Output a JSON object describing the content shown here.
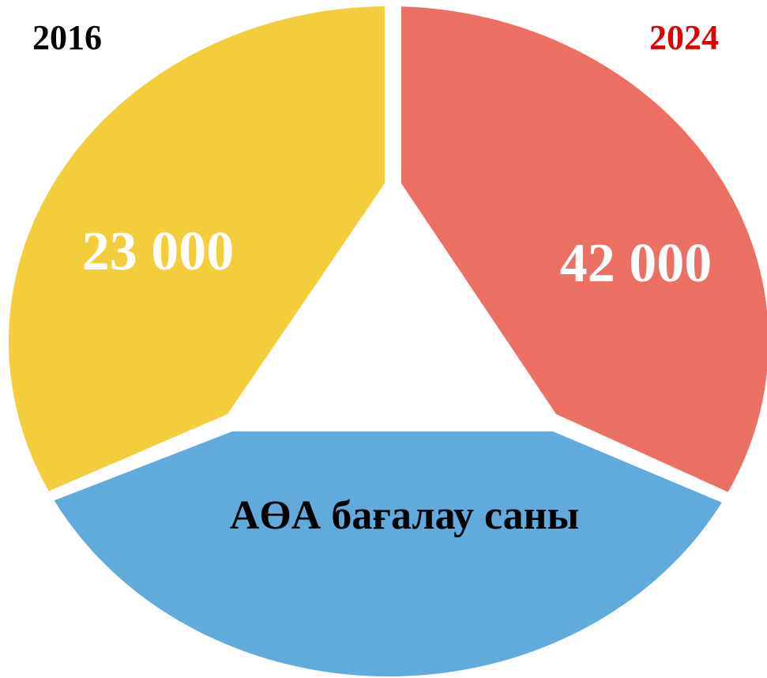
{
  "left": {
    "year": "2016",
    "value": "23 000"
  },
  "right": {
    "year": "2024",
    "value": "42 000"
  },
  "bottom": {
    "label": "АӨА бағалау саны"
  }
}
